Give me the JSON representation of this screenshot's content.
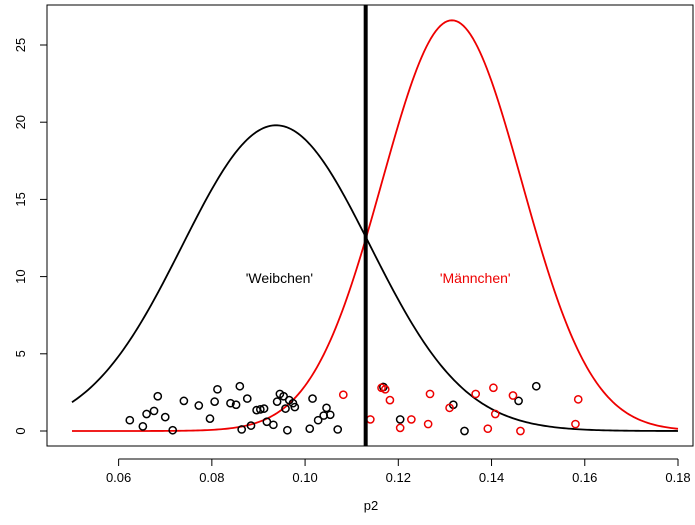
{
  "chart_data": {
    "type": "line",
    "title": "",
    "xlabel": "p2",
    "ylabel": "",
    "xlim": [
      0.05,
      0.18
    ],
    "ylim": [
      0,
      27
    ],
    "x_ticks": [
      "0.06",
      "0.08",
      "0.10",
      "0.12",
      "0.14",
      "0.16",
      "0.18"
    ],
    "y_ticks": [
      "0",
      "5",
      "10",
      "15",
      "20",
      "25"
    ],
    "grid": false,
    "legend": "none",
    "series": [
      {
        "name": "'Weibchen'",
        "kind": "normal-density",
        "mean": 0.0938,
        "peak": 19.8,
        "x_range": [
          0.05,
          0.18
        ],
        "color": "#000000",
        "points": [
          [
            0.0624,
            0.7
          ],
          [
            0.0652,
            0.3
          ],
          [
            0.066,
            1.1
          ],
          [
            0.0676,
            1.3
          ],
          [
            0.0684,
            2.25
          ],
          [
            0.07,
            0.9
          ],
          [
            0.0716,
            0.05
          ],
          [
            0.074,
            1.95
          ],
          [
            0.0772,
            1.65
          ],
          [
            0.0796,
            0.8
          ],
          [
            0.0806,
            1.9
          ],
          [
            0.0812,
            2.7
          ],
          [
            0.084,
            1.8
          ],
          [
            0.0852,
            1.7
          ],
          [
            0.086,
            2.9
          ],
          [
            0.0864,
            0.1
          ],
          [
            0.0876,
            2.1
          ],
          [
            0.0884,
            0.35
          ],
          [
            0.0896,
            1.35
          ],
          [
            0.0904,
            1.4
          ],
          [
            0.0912,
            1.45
          ],
          [
            0.0918,
            0.6
          ],
          [
            0.0932,
            0.4
          ],
          [
            0.094,
            1.9
          ],
          [
            0.0946,
            2.4
          ],
          [
            0.0954,
            2.25
          ],
          [
            0.0958,
            1.45
          ],
          [
            0.0962,
            0.05
          ],
          [
            0.0966,
            2.0
          ],
          [
            0.0974,
            1.8
          ],
          [
            0.0978,
            1.55
          ],
          [
            0.101,
            0.15
          ],
          [
            0.1016,
            2.1
          ],
          [
            0.1028,
            0.7
          ],
          [
            0.104,
            1.0
          ],
          [
            0.1046,
            1.5
          ],
          [
            0.1054,
            1.05
          ],
          [
            0.107,
            0.1
          ],
          [
            0.1168,
            2.85
          ],
          [
            0.1204,
            0.75
          ],
          [
            0.1318,
            1.7
          ],
          [
            0.1342,
            0.0
          ],
          [
            0.1458,
            1.95
          ],
          [
            0.1496,
            2.9
          ]
        ]
      },
      {
        "name": "'Männchen'",
        "kind": "normal-density",
        "mean": 0.1315,
        "peak": 26.6,
        "x_range": [
          0.05,
          0.18
        ],
        "color": "#ee0000",
        "points": [
          [
            0.1082,
            2.35
          ],
          [
            0.114,
            0.75
          ],
          [
            0.1164,
            2.8
          ],
          [
            0.1172,
            2.7
          ],
          [
            0.1182,
            2.0
          ],
          [
            0.1204,
            0.2
          ],
          [
            0.1228,
            0.75
          ],
          [
            0.1264,
            0.45
          ],
          [
            0.1268,
            2.4
          ],
          [
            0.131,
            1.5
          ],
          [
            0.1366,
            2.4
          ],
          [
            0.1392,
            0.15
          ],
          [
            0.1404,
            2.8
          ],
          [
            0.1408,
            1.1
          ],
          [
            0.1446,
            2.3
          ],
          [
            0.1462,
            0.0
          ],
          [
            0.158,
            0.45
          ],
          [
            0.1586,
            2.05
          ]
        ]
      }
    ],
    "vline": {
      "x": 0.113,
      "color": "#000000"
    },
    "annotations": [
      {
        "text": "'Weibchen'",
        "x": 0.0945,
        "y": 9.9,
        "color": "#000000"
      },
      {
        "text": "'Männchen'",
        "x": 0.1365,
        "y": 9.9,
        "color": "#ee0000"
      }
    ]
  }
}
